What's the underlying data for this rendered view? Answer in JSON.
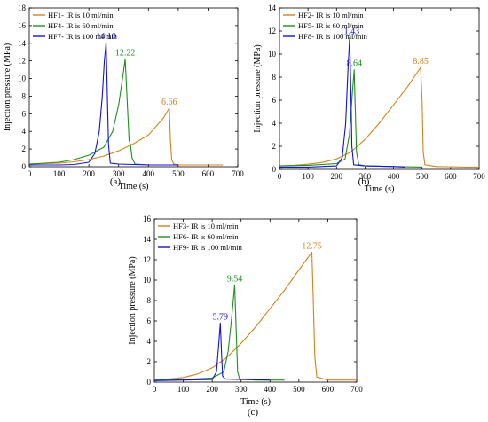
{
  "chart_data": [
    {
      "type": "line",
      "caption": "(a)",
      "xlabel": "Time (s)",
      "ylabel": "Injection pressure (MPa)",
      "xlim": [
        0,
        700
      ],
      "ylim": [
        0,
        18
      ],
      "xticks": [
        0,
        100,
        200,
        300,
        400,
        500,
        600,
        700
      ],
      "yticks": [
        0,
        2,
        4,
        6,
        8,
        10,
        12,
        14,
        16,
        18
      ],
      "legend_position": "top-left",
      "series": [
        {
          "name": "HF1- IR is 10 ml/min",
          "color": "#d4821a",
          "points": [
            [
              0,
              0.3
            ],
            [
              50,
              0.35
            ],
            [
              100,
              0.4
            ],
            [
              150,
              0.55
            ],
            [
              200,
              0.8
            ],
            [
              250,
              1.2
            ],
            [
              300,
              1.8
            ],
            [
              350,
              2.6
            ],
            [
              400,
              3.6
            ],
            [
              450,
              5.5
            ],
            [
              470,
              6.66
            ],
            [
              474,
              3.0
            ],
            [
              478,
              0.8
            ],
            [
              485,
              0.3
            ],
            [
              500,
              0.2
            ],
            [
              600,
              0.2
            ],
            [
              650,
              0.2
            ]
          ],
          "peak": {
            "x": 470,
            "y": 6.66,
            "label": "6.66"
          }
        },
        {
          "name": "HF4- IR is 60 ml/min",
          "color": "#1e8f1e",
          "points": [
            [
              0,
              0.3
            ],
            [
              100,
              0.5
            ],
            [
              150,
              0.8
            ],
            [
              200,
              1.3
            ],
            [
              250,
              2.2
            ],
            [
              280,
              4.0
            ],
            [
              300,
              7.0
            ],
            [
              315,
              10.5
            ],
            [
              322,
              12.22
            ],
            [
              328,
              8.0
            ],
            [
              335,
              3.0
            ],
            [
              340,
              2.5
            ],
            [
              345,
              1.0
            ],
            [
              355,
              0.3
            ],
            [
              400,
              0.2
            ],
            [
              500,
              0.2
            ]
          ],
          "peak": {
            "x": 322,
            "y": 12.22,
            "label": "12.22"
          }
        },
        {
          "name": "HF7- IR is 100 ml/min",
          "color": "#1010e0",
          "points": [
            [
              0,
              0.2
            ],
            [
              100,
              0.2
            ],
            [
              150,
              0.25
            ],
            [
              200,
              0.5
            ],
            [
              220,
              1.5
            ],
            [
              235,
              4.0
            ],
            [
              245,
              8.0
            ],
            [
              252,
              12.0
            ],
            [
              258,
              14.1
            ],
            [
              262,
              8.0
            ],
            [
              266,
              2.5
            ],
            [
              272,
              0.4
            ],
            [
              300,
              0.3
            ],
            [
              400,
              0.2
            ],
            [
              500,
              0.2
            ]
          ],
          "peak": {
            "x": 258,
            "y": 14.1,
            "label": "14.10"
          }
        }
      ]
    },
    {
      "type": "line",
      "caption": "(b)",
      "xlabel": "Time (s)",
      "ylabel": "Injection pressure (MPa)",
      "xlim": [
        0,
        700
      ],
      "ylim": [
        0,
        14
      ],
      "xticks": [
        0,
        100,
        200,
        300,
        400,
        500,
        600,
        700
      ],
      "yticks": [
        0,
        2,
        4,
        6,
        8,
        10,
        12,
        14
      ],
      "legend_position": "top-left",
      "series": [
        {
          "name": "HF2- IR is 10 ml/min",
          "color": "#d4821a",
          "points": [
            [
              0,
              0.3
            ],
            [
              50,
              0.35
            ],
            [
              100,
              0.45
            ],
            [
              150,
              0.6
            ],
            [
              200,
              0.9
            ],
            [
              250,
              1.5
            ],
            [
              300,
              2.6
            ],
            [
              350,
              4.0
            ],
            [
              400,
              5.6
            ],
            [
              450,
              7.2
            ],
            [
              495,
              8.85
            ],
            [
              500,
              6.0
            ],
            [
              504,
              1.5
            ],
            [
              510,
              0.4
            ],
            [
              550,
              0.25
            ],
            [
              650,
              0.2
            ],
            [
              700,
              0.2
            ]
          ],
          "peak": {
            "x": 495,
            "y": 8.85,
            "label": "8.85"
          }
        },
        {
          "name": "HF5- IR is 60 ml/min",
          "color": "#1e8f1e",
          "points": [
            [
              0,
              0.3
            ],
            [
              100,
              0.35
            ],
            [
              200,
              0.5
            ],
            [
              230,
              0.9
            ],
            [
              245,
              3.0
            ],
            [
              255,
              6.5
            ],
            [
              262,
              8.64
            ],
            [
              266,
              5.0
            ],
            [
              270,
              1.5
            ],
            [
              278,
              0.4
            ],
            [
              300,
              0.3
            ],
            [
              400,
              0.25
            ],
            [
              500,
              0.2
            ]
          ],
          "peak": {
            "x": 262,
            "y": 8.64,
            "label": "8.64"
          }
        },
        {
          "name": "HF8- IR is 100 ml/min",
          "color": "#1010e0",
          "points": [
            [
              0,
              0.2
            ],
            [
              100,
              0.2
            ],
            [
              200,
              0.3
            ],
            [
              220,
              1.0
            ],
            [
              232,
              4.0
            ],
            [
              240,
              8.5
            ],
            [
              246,
              11.43
            ],
            [
              250,
              7.0
            ],
            [
              254,
              2.0
            ],
            [
              260,
              0.4
            ],
            [
              300,
              0.3
            ],
            [
              400,
              0.25
            ],
            [
              440,
              0.2
            ]
          ],
          "peak": {
            "x": 246,
            "y": 11.43,
            "label": "11.43"
          }
        }
      ]
    },
    {
      "type": "line",
      "caption": "(c)",
      "xlabel": "Time (s)",
      "ylabel": "Injection pressure (MPa)",
      "xlim": [
        0,
        700
      ],
      "ylim": [
        0,
        16
      ],
      "xticks": [
        0,
        100,
        200,
        300,
        400,
        500,
        600,
        700
      ],
      "yticks": [
        0,
        2,
        4,
        6,
        8,
        10,
        12,
        14,
        16
      ],
      "legend_position": "top-left",
      "series": [
        {
          "name": "HF3- IR is 10 ml/min",
          "color": "#d4821a",
          "points": [
            [
              0,
              0.2
            ],
            [
              50,
              0.3
            ],
            [
              100,
              0.45
            ],
            [
              150,
              0.8
            ],
            [
              200,
              1.4
            ],
            [
              250,
              2.4
            ],
            [
              300,
              3.8
            ],
            [
              350,
              5.4
            ],
            [
              400,
              7.2
            ],
            [
              450,
              9.0
            ],
            [
              500,
              11.0
            ],
            [
              545,
              12.75
            ],
            [
              550,
              8.0
            ],
            [
              555,
              2.5
            ],
            [
              562,
              0.5
            ],
            [
              600,
              0.2
            ],
            [
              650,
              0.2
            ],
            [
              700,
              0.2
            ]
          ],
          "peak": {
            "x": 545,
            "y": 12.75,
            "label": "12.75"
          }
        },
        {
          "name": "HF6- IR is 60 ml/min",
          "color": "#1e8f1e",
          "points": [
            [
              0,
              0.2
            ],
            [
              100,
              0.25
            ],
            [
              200,
              0.4
            ],
            [
              240,
              1.0
            ],
            [
              255,
              3.0
            ],
            [
              268,
              6.5
            ],
            [
              278,
              9.54
            ],
            [
              283,
              5.0
            ],
            [
              288,
              1.0
            ],
            [
              295,
              0.3
            ],
            [
              350,
              0.2
            ],
            [
              450,
              0.2
            ]
          ],
          "peak": {
            "x": 278,
            "y": 9.54,
            "label": "9.54"
          }
        },
        {
          "name": "HF9- IR is 100 ml/min",
          "color": "#1010e0",
          "points": [
            [
              0,
              0.15
            ],
            [
              100,
              0.2
            ],
            [
              200,
              0.25
            ],
            [
              215,
              1.0
            ],
            [
              222,
              3.5
            ],
            [
              228,
              5.79
            ],
            [
              232,
              3.0
            ],
            [
              236,
              0.6
            ],
            [
              245,
              0.3
            ],
            [
              300,
              0.25
            ],
            [
              400,
              0.2
            ]
          ],
          "peak": {
            "x": 228,
            "y": 5.79,
            "label": "5.79"
          }
        }
      ]
    }
  ]
}
